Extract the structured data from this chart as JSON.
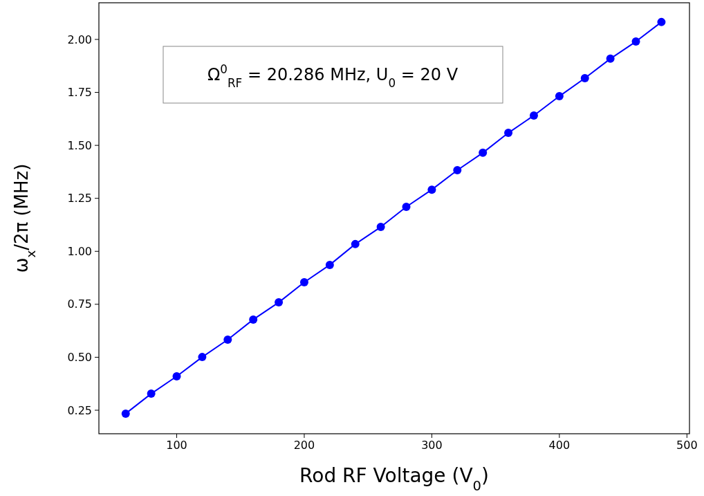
{
  "chart_data": {
    "type": "line",
    "xlabel": "Rod RF Voltage (V$_{0}$)",
    "ylabel": "ω$_{x}$/2π (MHz)",
    "annotations": [
      "Ω$^{0}$$_{RF}$ = 20.286 MHz, U$_{0}$ = 20 V"
    ],
    "x": [
      60,
      80,
      100,
      120,
      140,
      160,
      180,
      200,
      220,
      240,
      260,
      280,
      300,
      320,
      340,
      360,
      380,
      400,
      420,
      440,
      460,
      480
    ],
    "series": [
      {
        "color": "#0000ff",
        "values": [
          0.234,
          0.328,
          0.41,
          0.501,
          0.583,
          0.678,
          0.759,
          0.854,
          0.936,
          1.034,
          1.115,
          1.21,
          1.291,
          1.383,
          1.465,
          1.559,
          1.641,
          1.732,
          1.817,
          1.909,
          1.99,
          2.082
        ]
      }
    ],
    "xlim": [
      39,
      502
    ],
    "ylim": [
      0.139,
      2.173
    ],
    "xticks": [
      100,
      200,
      300,
      400,
      500
    ],
    "yticks": [
      0.25,
      {
        "value": 0.5,
        "label": "0.50"
      },
      0.75,
      {
        "value": 1,
        "label": "1.00"
      },
      1.25,
      {
        "value": 1.5,
        "label": "1.50"
      },
      1.75,
      {
        "value": 2,
        "label": "2.00"
      }
    ],
    "marker": "circle",
    "line_style": "solid",
    "grid": false
  }
}
